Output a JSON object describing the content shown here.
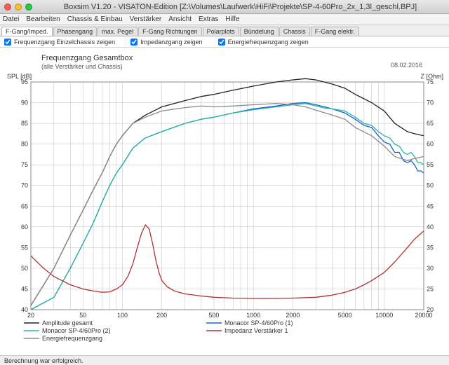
{
  "window": {
    "title": "Boxsim V1.20 - VISATON-Edition  [Z:\\Volumes\\Laufwerk\\HiFi\\Projekte\\SP-4-60Pro_2x_1,3l_geschl.BPJ]"
  },
  "menubar": [
    "Datei",
    "Bearbeiten",
    "Chassis & Einbau",
    "Verstärker",
    "Ansicht",
    "Extras",
    "Hilfe"
  ],
  "tabs": [
    "F-Gang/Imped.",
    "Phasengang",
    "max. Pegel",
    "F-Gang Richtungen",
    "Polarplots",
    "Bündelung",
    "Chassis",
    "F-Gang elektr."
  ],
  "active_tab": 0,
  "checkboxes": [
    {
      "label": "Frequenzgang Einzelchassis zeigen",
      "checked": true
    },
    {
      "label": "Impedanzgang zeigen",
      "checked": true
    },
    {
      "label": "Energiefrequenzgang zeigen",
      "checked": true
    }
  ],
  "statusbar": "Berechnung war erfolgreich.",
  "chart": {
    "title": "Frequenzgang Gesamtbox",
    "subtitle": "(alle Verstärker und Chassis)",
    "date": "08.02.2016",
    "x_label_freq_start": 20,
    "x_label_freq_end": 20000,
    "y_left_label": "SPL [dB]",
    "y_right_label": "Z [Ohm]",
    "y_left_ticks": [
      40,
      45,
      50,
      55,
      60,
      65,
      70,
      75,
      80,
      85,
      90,
      95
    ],
    "y_right_ticks": [
      20,
      25,
      30,
      35,
      40,
      45,
      50,
      55,
      60,
      65,
      70,
      75
    ],
    "x_ticks": [
      20,
      50,
      100,
      200,
      500,
      1000,
      2000,
      5000,
      10000,
      20000
    ],
    "background_color": "#ffffff",
    "grid_color": "#bdbdbd",
    "axis_color": "#888888",
    "title_fontsize": 11,
    "series": [
      {
        "name": "Amplitude gesamt",
        "color": "#222222",
        "legend_col": 0,
        "legend_row": 0,
        "pts": [
          [
            20,
            41
          ],
          [
            30,
            50
          ],
          [
            40,
            58
          ],
          [
            50,
            64
          ],
          [
            60,
            69
          ],
          [
            70,
            73
          ],
          [
            80,
            77
          ],
          [
            90,
            80
          ],
          [
            100,
            82
          ],
          [
            120,
            85
          ],
          [
            150,
            87
          ],
          [
            200,
            89
          ],
          [
            300,
            90.5
          ],
          [
            400,
            91.5
          ],
          [
            500,
            92
          ],
          [
            700,
            93
          ],
          [
            1000,
            94
          ],
          [
            1500,
            95
          ],
          [
            2000,
            95.5
          ],
          [
            2500,
            95.8
          ],
          [
            3000,
            95.5
          ],
          [
            4000,
            94.5
          ],
          [
            5000,
            93.5
          ],
          [
            6000,
            92
          ],
          [
            8000,
            90
          ],
          [
            10000,
            88
          ],
          [
            12000,
            85
          ],
          [
            15000,
            83
          ],
          [
            17000,
            82.5
          ],
          [
            20000,
            82
          ]
        ]
      },
      {
        "name": "Monacor SP-4/60Pro (1)",
        "color": "#1560d0",
        "legend_col": 1,
        "legend_row": 0,
        "pts": [
          [
            20,
            40
          ],
          [
            30,
            43
          ],
          [
            40,
            50
          ],
          [
            50,
            56
          ],
          [
            60,
            61
          ],
          [
            70,
            66
          ],
          [
            80,
            70
          ],
          [
            90,
            73
          ],
          [
            100,
            75
          ],
          [
            120,
            79
          ],
          [
            150,
            81.5
          ],
          [
            200,
            83
          ],
          [
            300,
            85
          ],
          [
            400,
            86
          ],
          [
            500,
            86.5
          ],
          [
            700,
            87.5
          ],
          [
            1000,
            88.5
          ],
          [
            1500,
            89.2
          ],
          [
            2000,
            89.8
          ],
          [
            2500,
            90
          ],
          [
            3000,
            89.5
          ],
          [
            3500,
            89
          ],
          [
            4000,
            88.5
          ],
          [
            5000,
            87.5
          ],
          [
            6000,
            86
          ],
          [
            7000,
            84.5
          ],
          [
            8000,
            84
          ],
          [
            9000,
            82
          ],
          [
            10000,
            80.5
          ],
          [
            11000,
            80
          ],
          [
            12000,
            78
          ],
          [
            13000,
            78
          ],
          [
            14000,
            76
          ],
          [
            15000,
            75.5
          ],
          [
            16000,
            76
          ],
          [
            17000,
            75
          ],
          [
            18000,
            73.5
          ],
          [
            19000,
            73.5
          ],
          [
            20000,
            73
          ]
        ]
      },
      {
        "name": "Monacor SP-4/60Pro (2)",
        "color": "#2ab5a0",
        "legend_col": 0,
        "legend_row": 1,
        "pts": [
          [
            20,
            40
          ],
          [
            30,
            43
          ],
          [
            40,
            50
          ],
          [
            50,
            56
          ],
          [
            60,
            61
          ],
          [
            70,
            66
          ],
          [
            80,
            70
          ],
          [
            90,
            73
          ],
          [
            100,
            75
          ],
          [
            120,
            79
          ],
          [
            150,
            81.5
          ],
          [
            200,
            83
          ],
          [
            300,
            85
          ],
          [
            400,
            86
          ],
          [
            500,
            86.5
          ],
          [
            700,
            87.5
          ],
          [
            1000,
            88.3
          ],
          [
            1500,
            89
          ],
          [
            2000,
            89.5
          ],
          [
            2500,
            89.8
          ],
          [
            3000,
            89.2
          ],
          [
            3500,
            88.7
          ],
          [
            4000,
            88.5
          ],
          [
            5000,
            88
          ],
          [
            6000,
            86.5
          ],
          [
            7000,
            85
          ],
          [
            8000,
            84.5
          ],
          [
            9000,
            83
          ],
          [
            10000,
            82
          ],
          [
            11000,
            81.5
          ],
          [
            12000,
            80
          ],
          [
            13000,
            79.5
          ],
          [
            14000,
            78
          ],
          [
            15000,
            77.5
          ],
          [
            16000,
            78
          ],
          [
            17000,
            77
          ],
          [
            18000,
            75.5
          ],
          [
            19000,
            75.5
          ],
          [
            20000,
            75
          ]
        ]
      },
      {
        "name": "Impedanz Verstärker 1",
        "color": "#b03030",
        "legend_col": 1,
        "legend_row": 1,
        "pts": [
          [
            20,
            53
          ],
          [
            25,
            50
          ],
          [
            30,
            48
          ],
          [
            40,
            46
          ],
          [
            50,
            45
          ],
          [
            60,
            44.5
          ],
          [
            70,
            44.2
          ],
          [
            80,
            44.3
          ],
          [
            90,
            45
          ],
          [
            100,
            46
          ],
          [
            110,
            48
          ],
          [
            120,
            51
          ],
          [
            130,
            55
          ],
          [
            140,
            58.5
          ],
          [
            150,
            60.5
          ],
          [
            160,
            59.5
          ],
          [
            170,
            56
          ],
          [
            180,
            52
          ],
          [
            190,
            49
          ],
          [
            200,
            47
          ],
          [
            220,
            45.5
          ],
          [
            250,
            44.5
          ],
          [
            300,
            43.8
          ],
          [
            400,
            43.3
          ],
          [
            500,
            43
          ],
          [
            700,
            42.8
          ],
          [
            1000,
            42.7
          ],
          [
            1500,
            42.7
          ],
          [
            2000,
            42.8
          ],
          [
            3000,
            43
          ],
          [
            4000,
            43.5
          ],
          [
            5000,
            44.2
          ],
          [
            6000,
            45
          ],
          [
            7000,
            46
          ],
          [
            8000,
            47
          ],
          [
            10000,
            49
          ],
          [
            12000,
            51.5
          ],
          [
            15000,
            55
          ],
          [
            17000,
            57
          ],
          [
            20000,
            59
          ]
        ]
      },
      {
        "name": "Energiefrequenzgang",
        "color": "#8a8a8a",
        "legend_col": 0,
        "legend_row": 2,
        "pts": [
          [
            20,
            41
          ],
          [
            30,
            50
          ],
          [
            40,
            58
          ],
          [
            50,
            64
          ],
          [
            60,
            69
          ],
          [
            70,
            73
          ],
          [
            80,
            77
          ],
          [
            90,
            80
          ],
          [
            100,
            82
          ],
          [
            120,
            85
          ],
          [
            150,
            86.5
          ],
          [
            200,
            88
          ],
          [
            300,
            88.8
          ],
          [
            400,
            89.2
          ],
          [
            500,
            89
          ],
          [
            700,
            89.2
          ],
          [
            1000,
            89.5
          ],
          [
            1500,
            89.8
          ],
          [
            2000,
            89.5
          ],
          [
            2500,
            89
          ],
          [
            3000,
            88.2
          ],
          [
            4000,
            87
          ],
          [
            5000,
            86
          ],
          [
            6000,
            84
          ],
          [
            8000,
            82
          ],
          [
            10000,
            79.5
          ],
          [
            12000,
            77
          ],
          [
            15000,
            76
          ],
          [
            17000,
            76.5
          ],
          [
            20000,
            77
          ]
        ]
      }
    ]
  }
}
